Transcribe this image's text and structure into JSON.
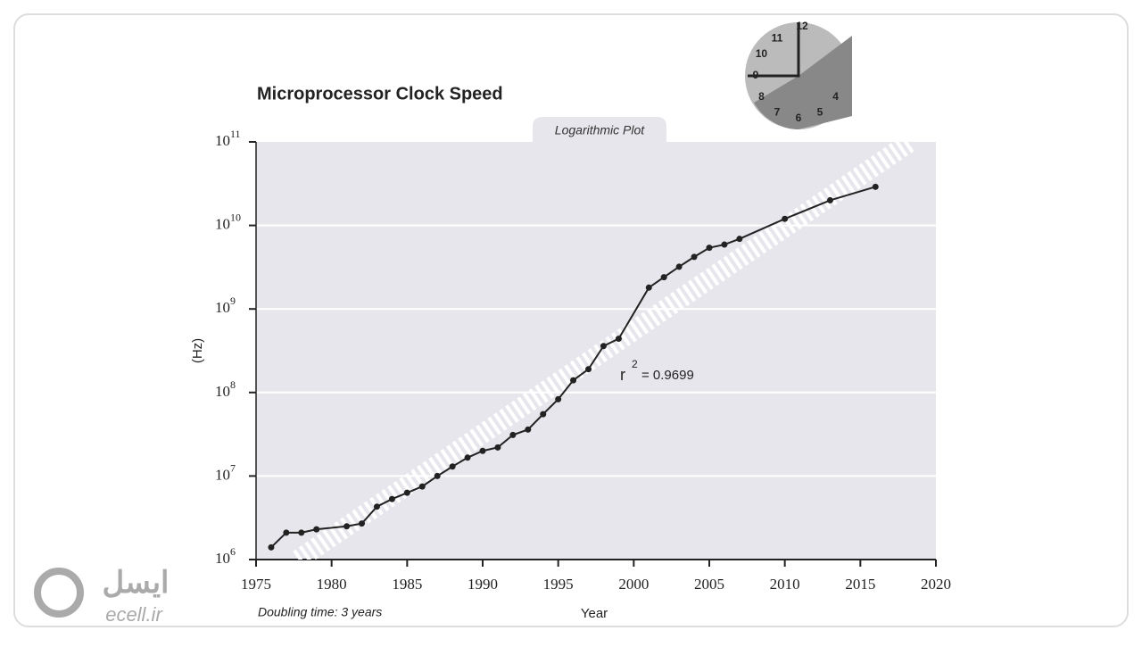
{
  "chart_data": {
    "type": "line",
    "title": "Microprocessor Clock Speed",
    "subtitle": "Logarithmic Plot",
    "x_label": "Year",
    "y_label": "(Hz)",
    "x": [
      1976,
      1977,
      1978,
      1979,
      1981,
      1982,
      1983,
      1984,
      1985,
      1986,
      1987,
      1988,
      1989,
      1990,
      1991,
      1992,
      1993,
      1994,
      1995,
      1996,
      1997,
      1998,
      1999,
      2001,
      2002,
      2003,
      2004,
      2005,
      2006,
      2007,
      2010,
      2013,
      2016
    ],
    "series": [
      {
        "color": "#222222",
        "values": [
          1400000,
          2100000,
          2100000,
          2300000,
          2500000,
          2700000,
          4300000,
          5300000,
          6300000,
          7500000,
          10000000,
          13000000,
          16600000,
          20000000,
          22000000,
          31000000,
          36000000,
          55000000,
          83000000,
          140000000,
          190000000,
          360000000,
          440000000,
          1800000000,
          2400000000,
          3200000000,
          4200000000,
          5400000000,
          5900000000,
          6900000000,
          12000000000,
          20000000000,
          29000000000
        ]
      }
    ],
    "trend": {
      "x": [
        1977.8,
        2018.3
      ],
      "values": [
        1000000,
        100000000000
      ]
    },
    "xlim": [
      1975,
      2020
    ],
    "xticks": [
      1975,
      1980,
      1985,
      1990,
      1995,
      2000,
      2005,
      2010,
      2015,
      2020
    ],
    "ylim": [
      1000000,
      100000000000
    ],
    "log_y": true,
    "grid": true,
    "yticks": [
      {
        "value": 1000000,
        "label": "10",
        "exponent": "6"
      },
      {
        "value": 10000000,
        "label": "10",
        "exponent": "7"
      },
      {
        "value": 100000000,
        "label": "10",
        "exponent": "8"
      },
      {
        "value": 1000000000,
        "label": "10",
        "exponent": "9"
      },
      {
        "value": 10000000000,
        "label": "10",
        "exponent": "10"
      },
      {
        "value": 100000000000,
        "label": "10",
        "exponent": "11"
      }
    ],
    "annotation": {
      "symbol": "r",
      "exponent": "2",
      "text": "= 0.9699"
    },
    "footnote": "Doubling time: 3 years"
  },
  "clock_numbers": [
    "12",
    "11",
    "10",
    "9",
    "8",
    "7",
    "6",
    "5",
    "4"
  ],
  "watermark": {
    "persian": "ایسل",
    "site": "ecell.ir"
  }
}
